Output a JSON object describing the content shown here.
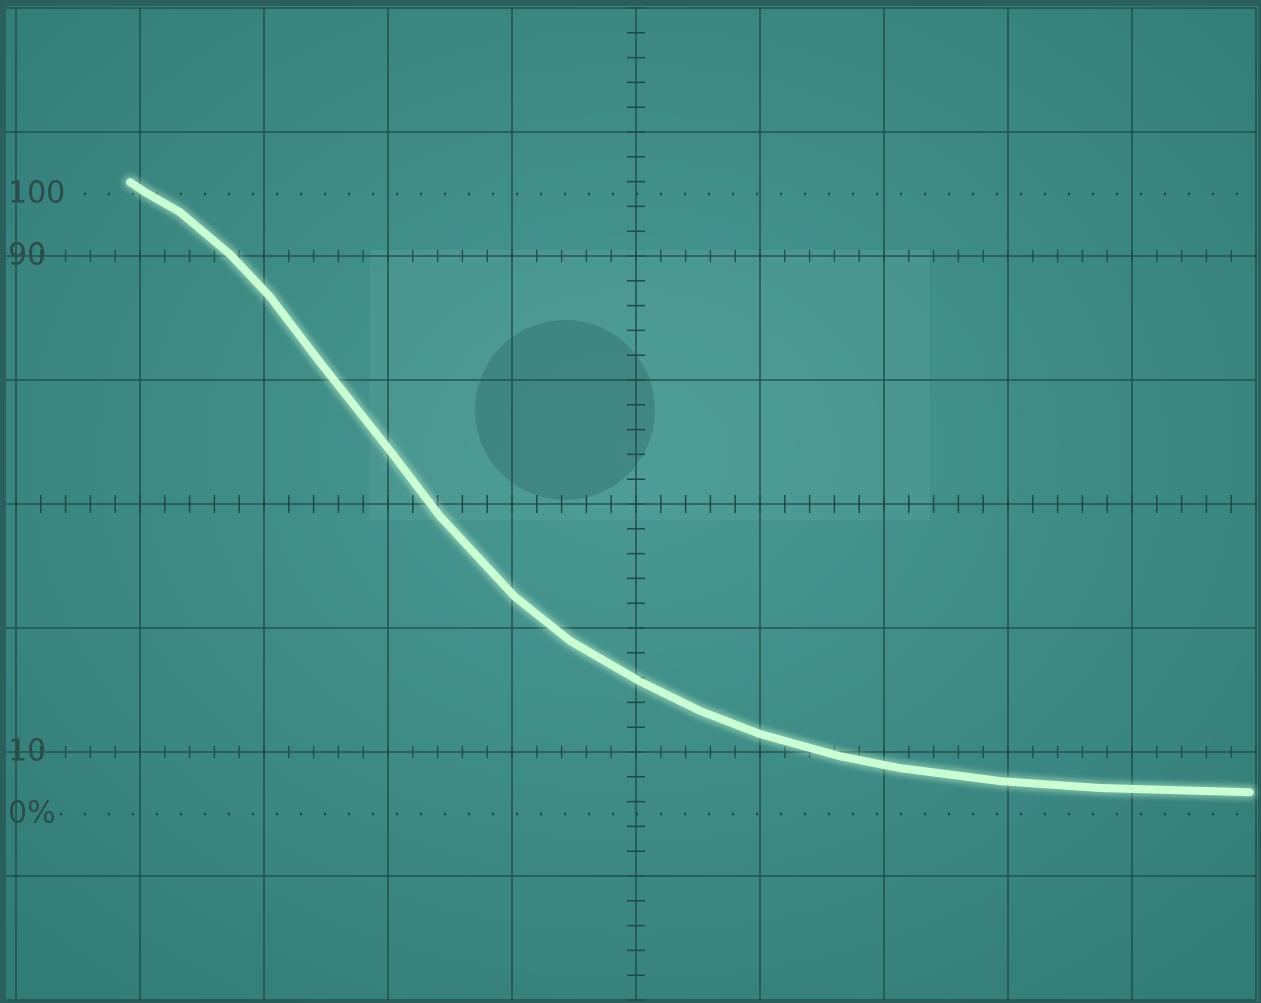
{
  "chart_data": {
    "type": "line",
    "x": [
      0.92,
      1.04,
      1.32,
      1.73,
      2.05,
      2.45,
      3.02,
      3.42,
      4.02,
      4.47,
      5.03,
      5.52,
      6.0,
      6.65,
      7.13,
      7.94,
      8.74,
      9.95
    ],
    "series": [
      {
        "color": "#c9ffd2",
        "values": [
          101.9,
          100.3,
          97.1,
          90.2,
          83.4,
          72.9,
          58.5,
          48,
          35.1,
          27.9,
          21.4,
          16.6,
          12.9,
          9.3,
          7.4,
          5.3,
          4.2,
          3.5
        ]
      }
    ],
    "xlim": [
      0,
      10
    ],
    "xticks": [
      0,
      1,
      2,
      3,
      4,
      5,
      6,
      7,
      8,
      9,
      10
    ],
    "ylim": [
      -30,
      130
    ],
    "yticks": [
      100,
      90,
      10,
      {
        "value": 0,
        "label": "0%"
      }
    ],
    "ygrid": [
      -30,
      -10,
      10,
      30,
      50,
      70,
      90,
      110,
      130
    ],
    "grid": true
  }
}
